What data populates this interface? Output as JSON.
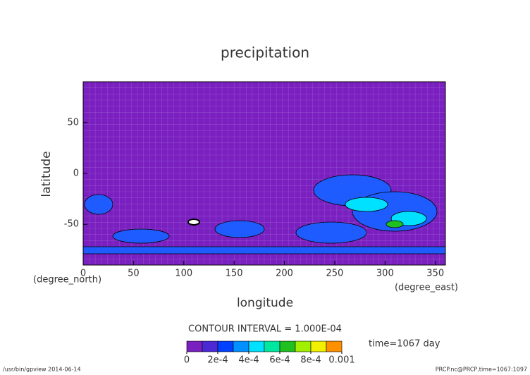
{
  "chart_data": {
    "type": "contour",
    "title": "precipitation",
    "x_label": "longitude",
    "x_unit": "(degree_east)",
    "y_label": "latitude",
    "y_unit": "(degree_north)",
    "xlim": [
      0,
      360
    ],
    "xticks": [
      0,
      50,
      100,
      150,
      200,
      250,
      300,
      350
    ],
    "ylim": [
      -90,
      90
    ],
    "yticks": [
      -50,
      0,
      50
    ],
    "background_color": "#7a1fc0",
    "contour_interval": "CONTOUR INTERVAL = 1.000E-04",
    "time": "time=1067 day",
    "colorbar": {
      "lim": [
        0,
        0.001
      ],
      "colors": [
        "#7a1fc0",
        "#4b2ad6",
        "#0040ff",
        "#0090ff",
        "#00e0ff",
        "#00e8a0",
        "#20c020",
        "#a0f000",
        "#f0f000",
        "#ff9000"
      ],
      "ticks": [
        0,
        {
          "value": 0.0002,
          "label": "2e-4"
        },
        {
          "value": 0.0004,
          "label": "4e-4"
        },
        {
          "value": 0.0006,
          "label": "6e-4"
        },
        {
          "value": 0.0008,
          "label": "8e-4"
        },
        0.001
      ]
    },
    "footer_left": "/usr/bin/gpview  2014-06-14",
    "footer_right": "PRCP.nc@PRCP,time=1067:1097"
  }
}
